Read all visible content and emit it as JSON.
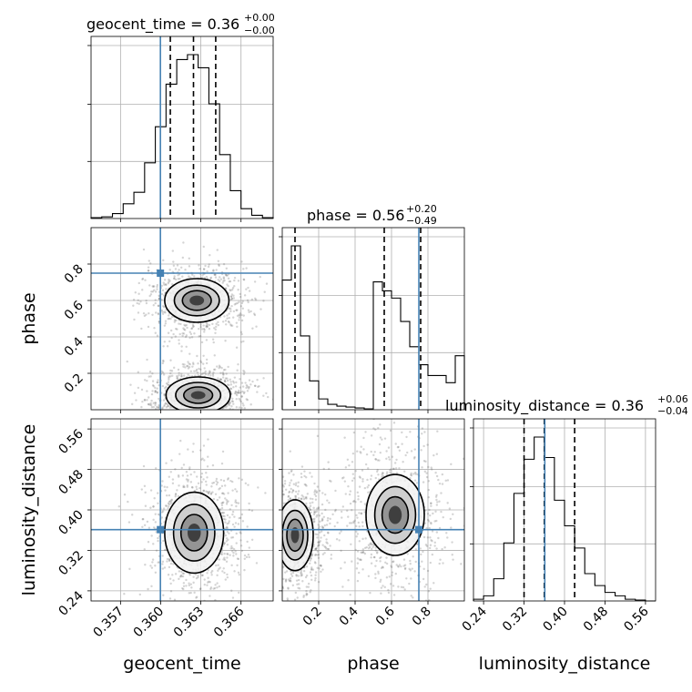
{
  "figure": {
    "type": "corner-plot",
    "truth_color": "#4682b4",
    "hist_color": "#000000",
    "contour_color": "#000000"
  },
  "parameters": [
    "geocent_time",
    "phase",
    "luminosity_distance"
  ],
  "titles": {
    "geocent_time": {
      "name": "geocent_time",
      "value": "0.36",
      "plus": "+0.00",
      "minus": "−0.00"
    },
    "phase": {
      "name": "phase",
      "value": "0.56",
      "plus": "+0.20",
      "minus": "−0.49"
    },
    "luminosity_distance": {
      "name": "luminosity_distance",
      "value": "0.36",
      "plus": "+0.06",
      "minus": "−0.04"
    }
  },
  "axis_labels": {
    "x": [
      "geocent_time",
      "phase",
      "luminosity_distance"
    ],
    "y": [
      "phase",
      "luminosity_distance"
    ]
  },
  "ticks": {
    "geocent_time": [
      "0.357",
      "0.360",
      "0.363",
      "0.366"
    ],
    "phase_x": [
      "0.2",
      "0.4",
      "0.6",
      "0.8"
    ],
    "phase_y": [
      "0.2",
      "0.4",
      "0.6",
      "0.8"
    ],
    "luminosity_distance_x": [
      "0.24",
      "0.32",
      "0.40",
      "0.48",
      "0.56"
    ],
    "luminosity_distance_y": [
      "0.24",
      "0.32",
      "0.40",
      "0.48",
      "0.56"
    ]
  },
  "chart_data": [
    {
      "type": "histogram",
      "panel": "geocent_time",
      "xlim": [
        0.3548,
        0.3684
      ],
      "bin_edges": [
        0.3548,
        0.3556,
        0.3564,
        0.3572,
        0.358,
        0.3588,
        0.3596,
        0.3604,
        0.3612,
        0.362,
        0.3628,
        0.3636,
        0.3644,
        0.3652,
        0.366,
        0.3668,
        0.3676,
        0.3684
      ],
      "counts": [
        0.005,
        0.01,
        0.03,
        0.09,
        0.16,
        0.34,
        0.56,
        0.82,
        0.97,
        1.0,
        0.92,
        0.7,
        0.39,
        0.17,
        0.06,
        0.02,
        0.005
      ],
      "quantiles": [
        0.36072,
        0.36245,
        0.36411
      ],
      "truth": 0.35998,
      "grid": true
    },
    {
      "type": "histogram",
      "panel": "phase",
      "xlim": [
        0.0,
        1.0
      ],
      "bin_edges": [
        0.0,
        0.05,
        0.1,
        0.15,
        0.2,
        0.25,
        0.3,
        0.35,
        0.4,
        0.45,
        0.5,
        0.55,
        0.6,
        0.65,
        0.7,
        0.75,
        0.8,
        0.85,
        0.9,
        0.95,
        1.0
      ],
      "counts": [
        0.72,
        0.91,
        0.41,
        0.16,
        0.06,
        0.03,
        0.02,
        0.015,
        0.01,
        0.005,
        0.71,
        0.66,
        0.62,
        0.49,
        0.35,
        0.25,
        0.19,
        0.19,
        0.15,
        0.3
      ],
      "quantiles": [
        0.07,
        0.56,
        0.76
      ],
      "truth": 0.75,
      "grid": true
    },
    {
      "type": "histogram",
      "panel": "luminosity_distance",
      "xlim": [
        0.22,
        0.58
      ],
      "bin_edges": [
        0.22,
        0.24,
        0.26,
        0.28,
        0.3,
        0.32,
        0.34,
        0.36,
        0.38,
        0.4,
        0.42,
        0.44,
        0.46,
        0.48,
        0.5,
        0.52,
        0.54,
        0.56,
        0.58
      ],
      "counts": [
        0.01,
        0.03,
        0.13,
        0.34,
        0.63,
        0.83,
        0.96,
        0.84,
        0.59,
        0.44,
        0.31,
        0.16,
        0.09,
        0.05,
        0.03,
        0.01,
        0.005,
        0.0
      ],
      "quantiles": [
        0.32,
        0.36,
        0.42
      ],
      "truth": 0.361,
      "grid": true
    },
    {
      "type": "2d-density-contour",
      "x": "geocent_time",
      "y": "phase",
      "xlim": [
        0.3548,
        0.3684
      ],
      "ylim": [
        0.0,
        1.0
      ],
      "truth": [
        0.35998,
        0.75
      ],
      "modes": [
        {
          "x": 0.3627,
          "y": 0.6,
          "sx": 0.0012,
          "sy": 0.06,
          "weight": 1.0
        },
        {
          "x": 0.3628,
          "y": 0.08,
          "sx": 0.0012,
          "sy": 0.05,
          "weight": 1.0
        }
      ]
    },
    {
      "type": "2d-density-contour",
      "x": "geocent_time",
      "y": "luminosity_distance",
      "xlim": [
        0.3548,
        0.3684
      ],
      "ylim": [
        0.22,
        0.58
      ],
      "truth": [
        0.35998,
        0.361
      ],
      "modes": [
        {
          "x": 0.3625,
          "y": 0.355,
          "sx": 0.0011,
          "sy": 0.04,
          "weight": 1.0
        }
      ]
    },
    {
      "type": "2d-density-contour",
      "x": "phase",
      "y": "luminosity_distance",
      "xlim": [
        0.0,
        1.0
      ],
      "ylim": [
        0.22,
        0.58
      ],
      "truth": [
        0.75,
        0.361
      ],
      "modes": [
        {
          "x": 0.07,
          "y": 0.35,
          "sx": 0.05,
          "sy": 0.035,
          "weight": 1.0
        },
        {
          "x": 0.62,
          "y": 0.39,
          "sx": 0.1,
          "sy": 0.05,
          "weight": 0.8
        }
      ]
    }
  ]
}
